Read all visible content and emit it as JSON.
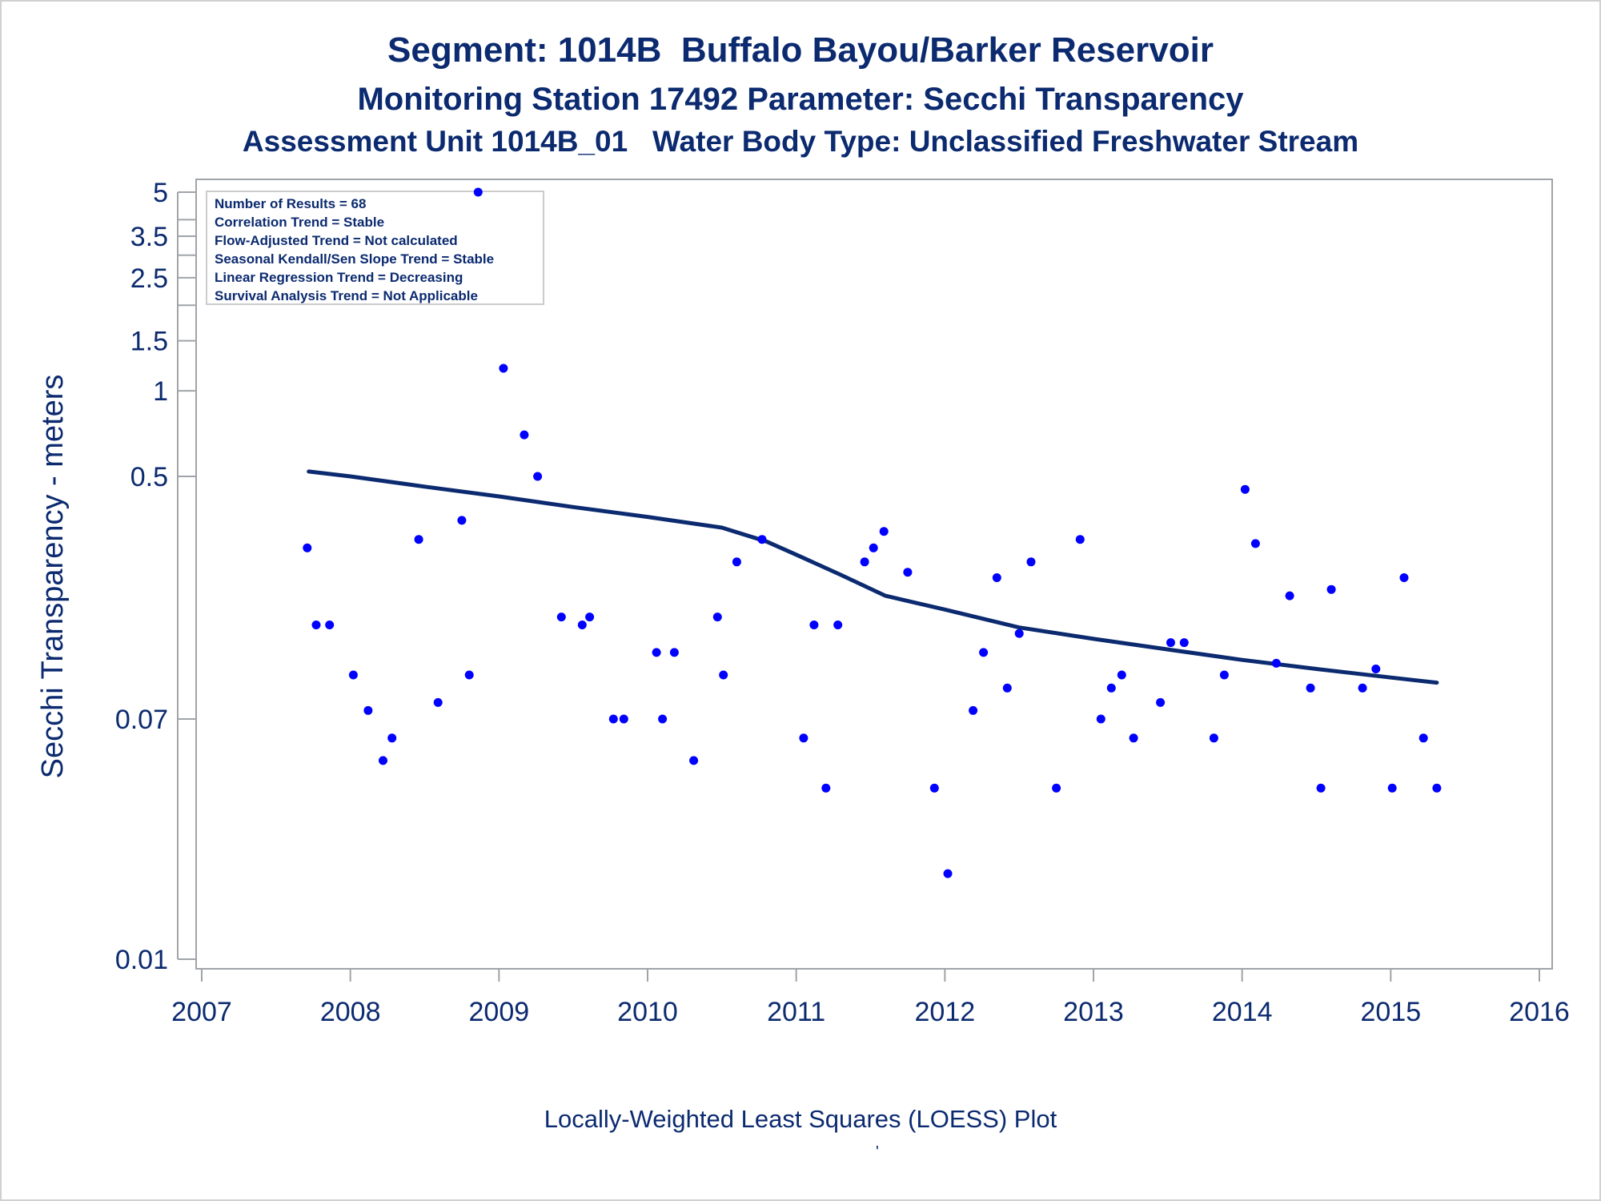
{
  "titles": {
    "line1": "Segment: 1014B  Buffalo Bayou/Barker Reservoir",
    "line2": "Monitoring Station 17492 Parameter: Secchi Transparency",
    "line3": "Assessment Unit 1014B_01   Water Body Type: Unclassified Freshwater Stream"
  },
  "footnote": "Locally-Weighted Least Squares (LOESS) Plot",
  "footnote_mark": "'",
  "stats_box": [
    "Number of Results = 68",
    "Correlation Trend = Stable",
    "Flow-Adjusted Trend = Not calculated",
    "Seasonal Kendall/Sen Slope Trend = Stable",
    "Linear Regression Trend = Decreasing",
    "Survival Analysis Trend = Not Applicable"
  ],
  "colors": {
    "text": "#0b2a6f",
    "points": "#0000ff",
    "loess": "#0b2a6f",
    "frame": "#a0a4a8"
  },
  "chart_data": {
    "type": "scatter",
    "ylabel": "Secchi Transparency - meters",
    "xlabel": "",
    "y_scale": "log",
    "xlim": [
      2007,
      2016
    ],
    "ylim": [
      0.01,
      5
    ],
    "x_ticks": [
      "2007",
      "2008",
      "2009",
      "2010",
      "2011",
      "2012",
      "2013",
      "2014",
      "2015",
      "2016"
    ],
    "y_ticks_labeled": [
      "0.01",
      "0.07",
      "0.5",
      "1",
      "1.5",
      "2.5",
      "3.5",
      "5"
    ],
    "y_ticks_unlabeled": [
      2,
      3,
      4
    ],
    "legend": "none",
    "grid": false,
    "points": [
      {
        "x": 2007.71,
        "y": 0.28
      },
      {
        "x": 2007.77,
        "y": 0.15
      },
      {
        "x": 2007.86,
        "y": 0.15
      },
      {
        "x": 2008.02,
        "y": 0.1
      },
      {
        "x": 2008.12,
        "y": 0.075
      },
      {
        "x": 2008.22,
        "y": 0.05
      },
      {
        "x": 2008.28,
        "y": 0.06
      },
      {
        "x": 2008.46,
        "y": 0.3
      },
      {
        "x": 2008.59,
        "y": 0.08
      },
      {
        "x": 2008.75,
        "y": 0.35
      },
      {
        "x": 2008.8,
        "y": 0.1
      },
      {
        "x": 2008.86,
        "y": 5
      },
      {
        "x": 2009.03,
        "y": 1.2
      },
      {
        "x": 2009.17,
        "y": 0.7
      },
      {
        "x": 2009.26,
        "y": 0.5
      },
      {
        "x": 2009.42,
        "y": 0.16
      },
      {
        "x": 2009.56,
        "y": 0.15
      },
      {
        "x": 2009.61,
        "y": 0.16
      },
      {
        "x": 2009.77,
        "y": 0.07
      },
      {
        "x": 2009.84,
        "y": 0.07
      },
      {
        "x": 2010.06,
        "y": 0.12
      },
      {
        "x": 2010.1,
        "y": 0.07
      },
      {
        "x": 2010.18,
        "y": 0.12
      },
      {
        "x": 2010.31,
        "y": 0.05
      },
      {
        "x": 2010.47,
        "y": 0.16
      },
      {
        "x": 2010.51,
        "y": 0.1
      },
      {
        "x": 2010.6,
        "y": 0.25
      },
      {
        "x": 2010.77,
        "y": 0.3
      },
      {
        "x": 2011.05,
        "y": 0.06
      },
      {
        "x": 2011.12,
        "y": 0.15
      },
      {
        "x": 2011.2,
        "y": 0.04
      },
      {
        "x": 2011.28,
        "y": 0.15
      },
      {
        "x": 2011.46,
        "y": 0.25
      },
      {
        "x": 2011.52,
        "y": 0.28
      },
      {
        "x": 2011.59,
        "y": 0.32
      },
      {
        "x": 2011.75,
        "y": 0.23
      },
      {
        "x": 2011.93,
        "y": 0.04
      },
      {
        "x": 2012.02,
        "y": 0.02
      },
      {
        "x": 2012.19,
        "y": 0.075
      },
      {
        "x": 2012.26,
        "y": 0.12
      },
      {
        "x": 2012.35,
        "y": 0.22
      },
      {
        "x": 2012.42,
        "y": 0.09
      },
      {
        "x": 2012.5,
        "y": 0.14
      },
      {
        "x": 2012.58,
        "y": 0.25
      },
      {
        "x": 2012.75,
        "y": 0.04
      },
      {
        "x": 2012.91,
        "y": 0.3
      },
      {
        "x": 2013.05,
        "y": 0.07
      },
      {
        "x": 2013.12,
        "y": 0.09
      },
      {
        "x": 2013.19,
        "y": 0.1
      },
      {
        "x": 2013.27,
        "y": 0.06
      },
      {
        "x": 2013.45,
        "y": 0.08
      },
      {
        "x": 2013.52,
        "y": 0.13
      },
      {
        "x": 2013.61,
        "y": 0.13
      },
      {
        "x": 2013.81,
        "y": 0.06
      },
      {
        "x": 2013.88,
        "y": 0.1
      },
      {
        "x": 2014.02,
        "y": 0.45
      },
      {
        "x": 2014.09,
        "y": 0.29
      },
      {
        "x": 2014.23,
        "y": 0.11
      },
      {
        "x": 2014.32,
        "y": 0.19
      },
      {
        "x": 2014.46,
        "y": 0.09
      },
      {
        "x": 2014.53,
        "y": 0.04
      },
      {
        "x": 2014.6,
        "y": 0.2
      },
      {
        "x": 2014.81,
        "y": 0.09
      },
      {
        "x": 2014.9,
        "y": 0.105
      },
      {
        "x": 2015.01,
        "y": 0.04
      },
      {
        "x": 2015.09,
        "y": 0.22
      },
      {
        "x": 2015.22,
        "y": 0.06
      },
      {
        "x": 2015.31,
        "y": 0.04
      }
    ],
    "loess": [
      {
        "x": 2007.72,
        "y": 0.52
      },
      {
        "x": 2008.0,
        "y": 0.5
      },
      {
        "x": 2008.5,
        "y": 0.46
      },
      {
        "x": 2009.0,
        "y": 0.425
      },
      {
        "x": 2009.5,
        "y": 0.39
      },
      {
        "x": 2010.0,
        "y": 0.36
      },
      {
        "x": 2010.5,
        "y": 0.33
      },
      {
        "x": 2010.8,
        "y": 0.295
      },
      {
        "x": 2011.0,
        "y": 0.265
      },
      {
        "x": 2011.3,
        "y": 0.225
      },
      {
        "x": 2011.6,
        "y": 0.19
      },
      {
        "x": 2012.0,
        "y": 0.17
      },
      {
        "x": 2012.5,
        "y": 0.147
      },
      {
        "x": 2013.0,
        "y": 0.134
      },
      {
        "x": 2013.5,
        "y": 0.123
      },
      {
        "x": 2014.0,
        "y": 0.113
      },
      {
        "x": 2014.5,
        "y": 0.105
      },
      {
        "x": 2015.0,
        "y": 0.098
      },
      {
        "x": 2015.31,
        "y": 0.094
      }
    ]
  }
}
